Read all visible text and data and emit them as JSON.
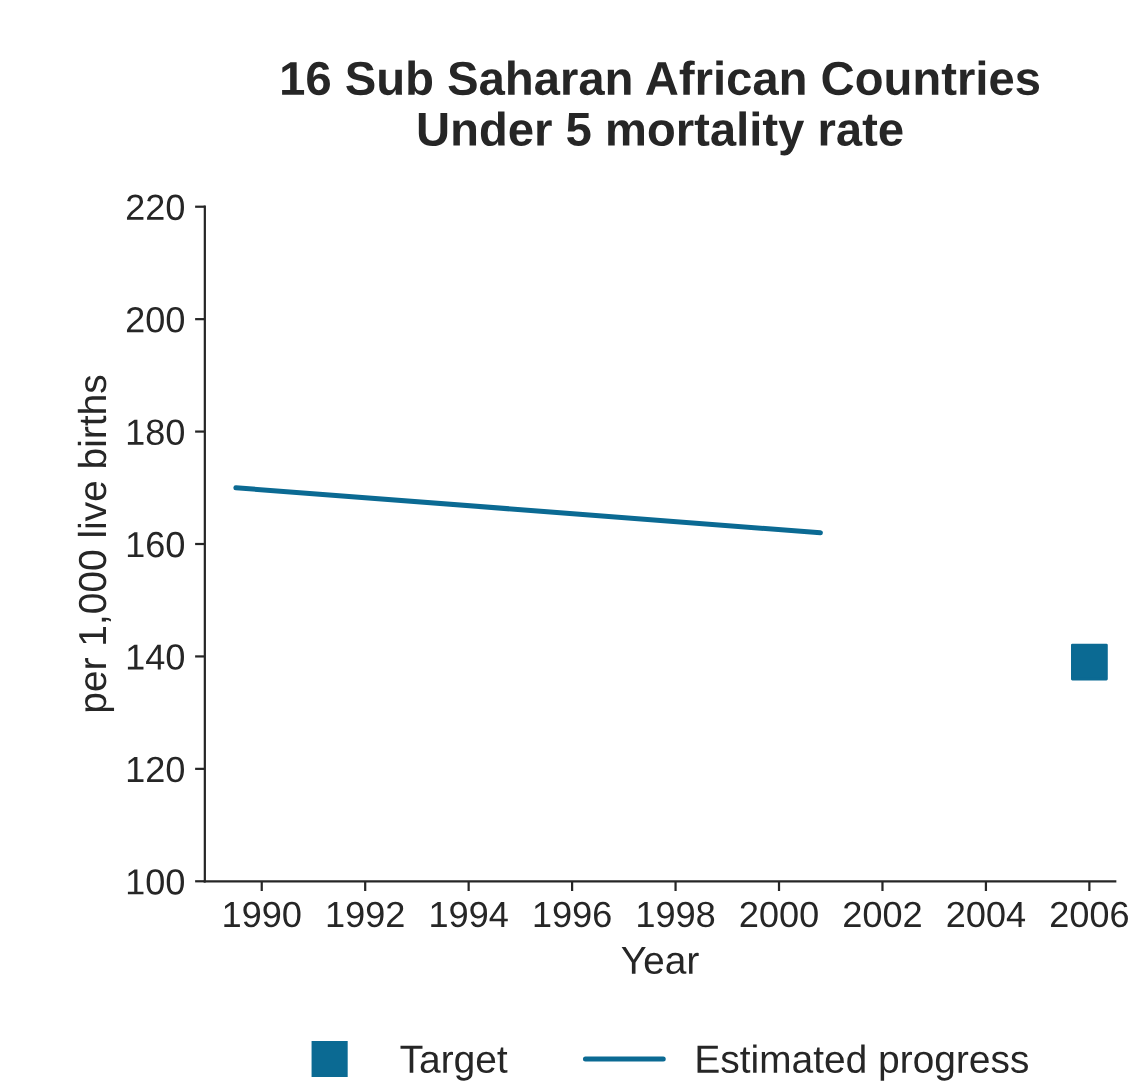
{
  "chart_data": {
    "type": "line",
    "title": "16 Sub Saharan African Countries\nUnder 5 mortality rate",
    "xlabel": "Year",
    "ylabel": "per 1,000 live births",
    "series": [
      {
        "name": "Target",
        "type": "scatter",
        "marker": "square",
        "color": "#0b6a93",
        "x": [
          2006
        ],
        "values": [
          139
        ]
      },
      {
        "name": "Estimated progress",
        "marker": "none",
        "color": "#0b6a93",
        "x": [
          1989.5,
          2000.8
        ],
        "values": [
          170,
          162
        ]
      }
    ],
    "xlim": [
      1988.9,
      2006.5
    ],
    "xticks": [
      1990,
      1992,
      1994,
      1996,
      1998,
      2000,
      2002,
      2004,
      2006
    ],
    "ylim": [
      100,
      220
    ],
    "yticks": [
      100,
      120,
      140,
      160,
      180,
      200,
      220
    ],
    "grid": false,
    "legend": "bottom"
  }
}
